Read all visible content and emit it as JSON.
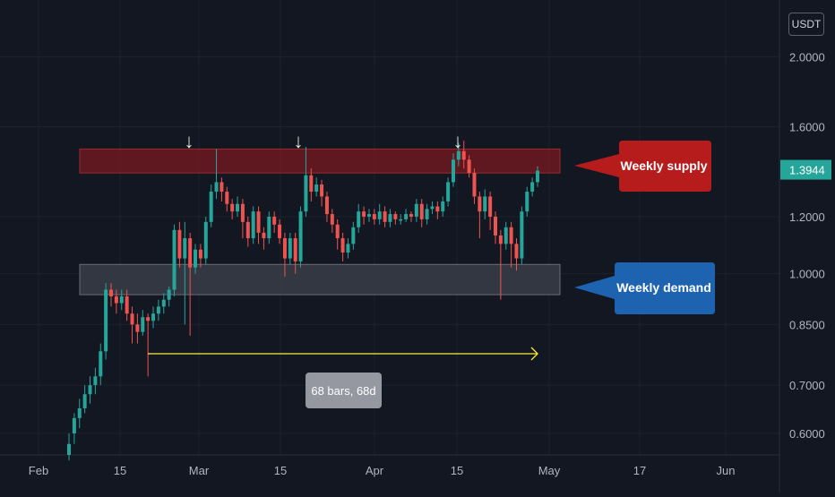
{
  "currency_label": "USDT",
  "colors": {
    "background": "#131722",
    "grid": "#1e222d",
    "axis_text": "#b2b5be",
    "up": "#26a69a",
    "down": "#ef5350",
    "supply_zone": "#7a1a1f",
    "demand_zone": "#3a3d47",
    "supply_callout": "#b71c1c",
    "demand_callout": "#1e63b0",
    "projection_line": "#ffeb3b",
    "last_price": "#26a69a"
  },
  "chart_data": {
    "type": "candlestick",
    "y_scale": "log",
    "ylim": [
      0.56,
      2.4
    ],
    "y_ticks": [
      "0.6000",
      "0.7000",
      "0.8500",
      "1.0000",
      "1.2000",
      "1.6000",
      "2.0000"
    ],
    "x_ticks": [
      "Feb",
      "15",
      "Mar",
      "15",
      "Apr",
      "15",
      "May",
      "17",
      "Jun"
    ],
    "last_price": "1.3944",
    "candles": [
      [
        0.56,
        0.58,
        0.55,
        0.6
      ],
      [
        0.6,
        0.63,
        0.58,
        0.64
      ],
      [
        0.63,
        0.65,
        0.61,
        0.67
      ],
      [
        0.65,
        0.68,
        0.64,
        0.7
      ],
      [
        0.68,
        0.7,
        0.66,
        0.72
      ],
      [
        0.7,
        0.72,
        0.68,
        0.74
      ],
      [
        0.72,
        0.78,
        0.7,
        0.8
      ],
      [
        0.78,
        0.95,
        0.76,
        0.97
      ],
      [
        0.95,
        0.93,
        0.9,
        0.97
      ],
      [
        0.93,
        0.91,
        0.88,
        0.95
      ],
      [
        0.91,
        0.93,
        0.89,
        0.95
      ],
      [
        0.93,
        0.88,
        0.86,
        0.95
      ],
      [
        0.88,
        0.85,
        0.8,
        0.9
      ],
      [
        0.85,
        0.83,
        0.8,
        0.88
      ],
      [
        0.83,
        0.87,
        0.82,
        0.89
      ],
      [
        0.87,
        0.86,
        0.72,
        0.88
      ],
      [
        0.86,
        0.88,
        0.84,
        0.9
      ],
      [
        0.88,
        0.9,
        0.86,
        0.92
      ],
      [
        0.9,
        0.92,
        0.88,
        0.94
      ],
      [
        0.92,
        0.95,
        0.9,
        0.96
      ],
      [
        0.95,
        1.15,
        0.93,
        1.17
      ],
      [
        1.15,
        1.05,
        1.02,
        1.18
      ],
      [
        1.05,
        1.12,
        0.85,
        1.18
      ],
      [
        1.12,
        1.02,
        0.82,
        1.14
      ],
      [
        1.02,
        1.08,
        1.0,
        1.1
      ],
      [
        1.08,
        1.05,
        1.02,
        1.1
      ],
      [
        1.05,
        1.18,
        1.03,
        1.2
      ],
      [
        1.18,
        1.3,
        1.16,
        1.33
      ],
      [
        1.3,
        1.34,
        1.27,
        1.49
      ],
      [
        1.34,
        1.3,
        1.26,
        1.36
      ],
      [
        1.3,
        1.25,
        1.22,
        1.32
      ],
      [
        1.25,
        1.22,
        1.19,
        1.27
      ],
      [
        1.22,
        1.25,
        1.2,
        1.28
      ],
      [
        1.25,
        1.18,
        1.12,
        1.27
      ],
      [
        1.18,
        1.12,
        1.09,
        1.2
      ],
      [
        1.12,
        1.22,
        1.1,
        1.24
      ],
      [
        1.22,
        1.14,
        1.1,
        1.24
      ],
      [
        1.14,
        1.12,
        1.08,
        1.16
      ],
      [
        1.12,
        1.2,
        1.1,
        1.22
      ],
      [
        1.2,
        1.17,
        1.14,
        1.22
      ],
      [
        1.17,
        1.12,
        1.1,
        1.19
      ],
      [
        1.12,
        1.05,
        0.99,
        1.14
      ],
      [
        1.05,
        1.12,
        1.03,
        1.14
      ],
      [
        1.12,
        1.04,
        1.0,
        1.14
      ],
      [
        1.04,
        1.22,
        1.02,
        1.24
      ],
      [
        1.22,
        1.37,
        1.2,
        1.5
      ],
      [
        1.37,
        1.3,
        1.26,
        1.4
      ],
      [
        1.3,
        1.33,
        1.28,
        1.36
      ],
      [
        1.33,
        1.28,
        1.24,
        1.35
      ],
      [
        1.28,
        1.21,
        1.18,
        1.3
      ],
      [
        1.21,
        1.17,
        1.14,
        1.23
      ],
      [
        1.17,
        1.12,
        1.08,
        1.19
      ],
      [
        1.12,
        1.07,
        1.04,
        1.14
      ],
      [
        1.07,
        1.1,
        1.05,
        1.12
      ],
      [
        1.1,
        1.16,
        1.08,
        1.18
      ],
      [
        1.16,
        1.22,
        1.14,
        1.25
      ],
      [
        1.22,
        1.2,
        1.17,
        1.24
      ],
      [
        1.2,
        1.21,
        1.18,
        1.23
      ],
      [
        1.21,
        1.19,
        1.17,
        1.23
      ],
      [
        1.19,
        1.22,
        1.17,
        1.25
      ],
      [
        1.22,
        1.18,
        1.16,
        1.24
      ],
      [
        1.18,
        1.21,
        1.16,
        1.23
      ],
      [
        1.21,
        1.19,
        1.17,
        1.22
      ],
      [
        1.19,
        1.19,
        1.17,
        1.21
      ],
      [
        1.19,
        1.21,
        1.18,
        1.23
      ],
      [
        1.21,
        1.2,
        1.18,
        1.22
      ],
      [
        1.2,
        1.25,
        1.18,
        1.27
      ],
      [
        1.25,
        1.19,
        1.16,
        1.27
      ],
      [
        1.19,
        1.23,
        1.17,
        1.25
      ],
      [
        1.23,
        1.24,
        1.21,
        1.26
      ],
      [
        1.24,
        1.22,
        1.19,
        1.26
      ],
      [
        1.22,
        1.26,
        1.2,
        1.28
      ],
      [
        1.26,
        1.34,
        1.24,
        1.36
      ],
      [
        1.34,
        1.44,
        1.32,
        1.47
      ],
      [
        1.44,
        1.48,
        1.41,
        1.52
      ],
      [
        1.48,
        1.44,
        1.4,
        1.53
      ],
      [
        1.44,
        1.38,
        1.36,
        1.46
      ],
      [
        1.38,
        1.28,
        1.25,
        1.4
      ],
      [
        1.28,
        1.22,
        1.12,
        1.3
      ],
      [
        1.22,
        1.28,
        1.19,
        1.31
      ],
      [
        1.28,
        1.2,
        1.15,
        1.3
      ],
      [
        1.2,
        1.13,
        1.1,
        1.22
      ],
      [
        1.13,
        1.1,
        0.92,
        1.15
      ],
      [
        1.1,
        1.16,
        1.08,
        1.18
      ],
      [
        1.16,
        1.1,
        1.02,
        1.18
      ],
      [
        1.1,
        1.05,
        1.01,
        1.12
      ],
      [
        1.05,
        1.22,
        1.03,
        1.24
      ],
      [
        1.22,
        1.3,
        1.2,
        1.32
      ],
      [
        1.3,
        1.34,
        1.28,
        1.36
      ],
      [
        1.34,
        1.39,
        1.32,
        1.41
      ]
    ]
  },
  "annotations": {
    "supply_label": "Weekly supply",
    "demand_label": "Weekly demand",
    "bars_label": "68 bars, 68d",
    "supply_zone": [
      1.38,
      1.49
    ],
    "demand_zone": [
      0.935,
      1.03
    ],
    "arrow_symbol": "↓",
    "arrow_count": 3
  }
}
